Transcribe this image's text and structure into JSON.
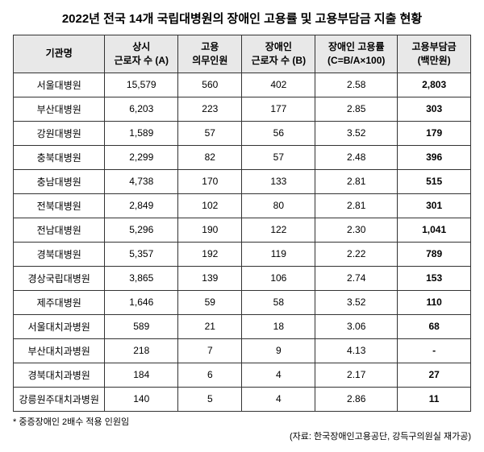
{
  "title": "2022년 전국 14개 국립대병원의 장애인 고용률 및 고용부담금 지출 현황",
  "columns": {
    "c0": "기관명",
    "c1_line1": "상시",
    "c1_line2": "근로자 수 (A)",
    "c2_line1": "고용",
    "c2_line2": "의무인원",
    "c3_line1": "장애인",
    "c3_line2": "근로자 수 (B)",
    "c4_line1": "장애인 고용률",
    "c4_line2": "(C=B/A×100)",
    "c5_line1": "고용부담금",
    "c5_line2": "(백만원)"
  },
  "rows": [
    {
      "name": "서울대병원",
      "a": "15,579",
      "b": "560",
      "c": "402",
      "d": "2.58",
      "e": "2,803"
    },
    {
      "name": "부산대병원",
      "a": "6,203",
      "b": "223",
      "c": "177",
      "d": "2.85",
      "e": "303"
    },
    {
      "name": "강원대병원",
      "a": "1,589",
      "b": "57",
      "c": "56",
      "d": "3.52",
      "e": "179"
    },
    {
      "name": "충북대병원",
      "a": "2,299",
      "b": "82",
      "c": "57",
      "d": "2.48",
      "e": "396"
    },
    {
      "name": "충남대병원",
      "a": "4,738",
      "b": "170",
      "c": "133",
      "d": "2.81",
      "e": "515"
    },
    {
      "name": "전북대병원",
      "a": "2,849",
      "b": "102",
      "c": "80",
      "d": "2.81",
      "e": "301"
    },
    {
      "name": "전남대병원",
      "a": "5,296",
      "b": "190",
      "c": "122",
      "d": "2.30",
      "e": "1,041"
    },
    {
      "name": "경북대병원",
      "a": "5,357",
      "b": "192",
      "c": "119",
      "d": "2.22",
      "e": "789"
    },
    {
      "name": "경상국립대병원",
      "a": "3,865",
      "b": "139",
      "c": "106",
      "d": "2.74",
      "e": "153"
    },
    {
      "name": "제주대병원",
      "a": "1,646",
      "b": "59",
      "c": "58",
      "d": "3.52",
      "e": "110"
    },
    {
      "name": "서울대치과병원",
      "a": "589",
      "b": "21",
      "c": "18",
      "d": "3.06",
      "e": "68"
    },
    {
      "name": "부산대치과병원",
      "a": "218",
      "b": "7",
      "c": "9",
      "d": "4.13",
      "e": "-"
    },
    {
      "name": "경북대치과병원",
      "a": "184",
      "b": "6",
      "c": "4",
      "d": "2.17",
      "e": "27"
    },
    {
      "name": "강릉원주대치과병원",
      "a": "140",
      "b": "5",
      "c": "4",
      "d": "2.86",
      "e": "11"
    }
  ],
  "footnote": "* 중증장애인 2배수 적용 인원임",
  "source": "(자료: 한국장애인고용공단, 강득구의원실 재가공)"
}
